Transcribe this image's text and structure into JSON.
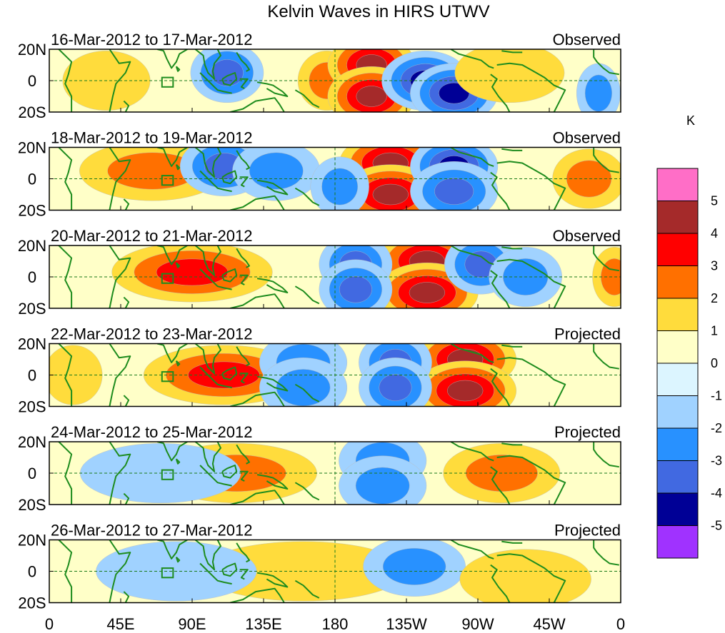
{
  "chart_data": {
    "type": "heatmap",
    "title": "Kelvin Waves in HIRS UTWV",
    "variable": "HIRS UTWV anomaly",
    "units": "K",
    "x_tick_labels": [
      "0",
      "45E",
      "90E",
      "135E",
      "180",
      "135W",
      "90W",
      "45W",
      "0"
    ],
    "x_tick_values_deg_east": [
      0,
      45,
      90,
      135,
      180,
      225,
      270,
      315,
      360
    ],
    "y_tick_labels": [
      "20N",
      "0",
      "20S"
    ],
    "y_tick_values_deg": [
      20,
      0,
      -20
    ],
    "xlim": [
      0,
      360
    ],
    "ylim": [
      -20,
      20
    ],
    "colorbar": {
      "label": "K",
      "bounds": [
        -5,
        -4,
        -3,
        -2,
        -1,
        0,
        1,
        2,
        3,
        4,
        5
      ],
      "tick_labels": [
        "5",
        "4",
        "3",
        "2",
        "1",
        "0",
        "-1",
        "-2",
        "-3",
        "-4",
        "-5"
      ],
      "colors_top_to_bottom": [
        "#ff6ec7",
        "#a52a2a",
        "#ff0000",
        "#ff7000",
        "#ffdc3c",
        "#ffffc8",
        "#dcf5ff",
        "#a0d2ff",
        "#2891ff",
        "#4169e1",
        "#000096",
        "#a032ff"
      ]
    },
    "panels": [
      {
        "date_range": "16-Mar-2012 to 17-Mar-2012",
        "kind": "Observed",
        "features": [
          {
            "lon": 175,
            "lat": 0,
            "value": 2.0,
            "spread_lon": 8
          },
          {
            "lon": 203,
            "lat": 10,
            "value": 4.5,
            "spread_lon": 12
          },
          {
            "lon": 203,
            "lat": -10,
            "value": 4.5,
            "spread_lon": 12
          },
          {
            "lon": 237,
            "lat": 0,
            "value": -4.5,
            "spread_lon": 12
          },
          {
            "lon": 255,
            "lat": -8,
            "value": -4.0,
            "spread_lon": 12
          },
          {
            "lon": 112,
            "lat": 5,
            "value": -3.0,
            "spread_lon": 10
          },
          {
            "lon": 36,
            "lat": 0,
            "value": 1.5,
            "spread_lon": 12
          },
          {
            "lon": 290,
            "lat": 5,
            "value": 1.2,
            "spread_lon": 15
          },
          {
            "lon": 346,
            "lat": -8,
            "value": -2.0,
            "spread_lon": 6
          }
        ]
      },
      {
        "date_range": "18-Mar-2012 to 19-Mar-2012",
        "kind": "Observed",
        "features": [
          {
            "lon": 65,
            "lat": 5,
            "value": 2.0,
            "spread_lon": 20
          },
          {
            "lon": 215,
            "lat": 10,
            "value": 4.5,
            "spread_lon": 14
          },
          {
            "lon": 215,
            "lat": -10,
            "value": 4.5,
            "spread_lon": 14
          },
          {
            "lon": 255,
            "lat": 8,
            "value": -4.0,
            "spread_lon": 12
          },
          {
            "lon": 255,
            "lat": -8,
            "value": -3.5,
            "spread_lon": 12
          },
          {
            "lon": 110,
            "lat": 8,
            "value": -3.0,
            "spread_lon": 12
          },
          {
            "lon": 143,
            "lat": 5,
            "value": -2.5,
            "spread_lon": 12
          },
          {
            "lon": 183,
            "lat": -5,
            "value": -2.0,
            "spread_lon": 8
          },
          {
            "lon": 340,
            "lat": 0,
            "value": 2.0,
            "spread_lon": 10
          }
        ]
      },
      {
        "date_range": "20-Mar-2012 to 21-Mar-2012",
        "kind": "Observed",
        "features": [
          {
            "lon": 90,
            "lat": 3,
            "value": 3.0,
            "spread_lon": 22
          },
          {
            "lon": 238,
            "lat": 10,
            "value": 4.5,
            "spread_lon": 14
          },
          {
            "lon": 238,
            "lat": -10,
            "value": 4.5,
            "spread_lon": 14
          },
          {
            "lon": 193,
            "lat": 8,
            "value": -3.5,
            "spread_lon": 10
          },
          {
            "lon": 193,
            "lat": -8,
            "value": -3.5,
            "spread_lon": 10
          },
          {
            "lon": 272,
            "lat": 8,
            "value": -3.5,
            "spread_lon": 10
          },
          {
            "lon": 300,
            "lat": 0,
            "value": -2.0,
            "spread_lon": 10
          },
          {
            "lon": 356,
            "lat": 0,
            "value": 2.5,
            "spread_lon": 6
          }
        ]
      },
      {
        "date_range": "22-Mar-2012 to 23-Mar-2012",
        "kind": "Projected",
        "features": [
          {
            "lon": 110,
            "lat": 0,
            "value": 3.0,
            "spread_lon": 22
          },
          {
            "lon": 262,
            "lat": 10,
            "value": 4.0,
            "spread_lon": 14
          },
          {
            "lon": 262,
            "lat": -10,
            "value": 4.0,
            "spread_lon": 14
          },
          {
            "lon": 160,
            "lat": 8,
            "value": -2.5,
            "spread_lon": 12
          },
          {
            "lon": 160,
            "lat": -8,
            "value": -2.5,
            "spread_lon": 12
          },
          {
            "lon": 218,
            "lat": 8,
            "value": -3.5,
            "spread_lon": 10
          },
          {
            "lon": 218,
            "lat": -8,
            "value": -3.5,
            "spread_lon": 10
          },
          {
            "lon": 15,
            "lat": 0,
            "value": 1.0,
            "spread_lon": 8
          }
        ]
      },
      {
        "date_range": "24-Mar-2012 to 25-Mar-2012",
        "kind": "Projected",
        "features": [
          {
            "lon": 118,
            "lat": 0,
            "value": 2.5,
            "spread_lon": 22
          },
          {
            "lon": 285,
            "lat": 0,
            "value": 2.0,
            "spread_lon": 16
          },
          {
            "lon": 210,
            "lat": 8,
            "value": -2.5,
            "spread_lon": 12
          },
          {
            "lon": 210,
            "lat": -8,
            "value": -2.5,
            "spread_lon": 12
          },
          {
            "lon": 70,
            "lat": 0,
            "value": -1.5,
            "spread_lon": 22
          },
          {
            "lon": 335,
            "lat": 0,
            "value": 0.5,
            "spread_lon": 20
          }
        ]
      },
      {
        "date_range": "26-Mar-2012 to 27-Mar-2012",
        "kind": "Projected",
        "features": [
          {
            "lon": 160,
            "lat": 0,
            "value": 1.5,
            "spread_lon": 28
          },
          {
            "lon": 230,
            "lat": 3,
            "value": -2.5,
            "spread_lon": 14
          },
          {
            "lon": 80,
            "lat": 0,
            "value": -1.5,
            "spread_lon": 22
          },
          {
            "lon": 300,
            "lat": -5,
            "value": 1.0,
            "spread_lon": 18
          },
          {
            "lon": 25,
            "lat": 0,
            "value": 0.5,
            "spread_lon": 20
          }
        ]
      }
    ]
  }
}
